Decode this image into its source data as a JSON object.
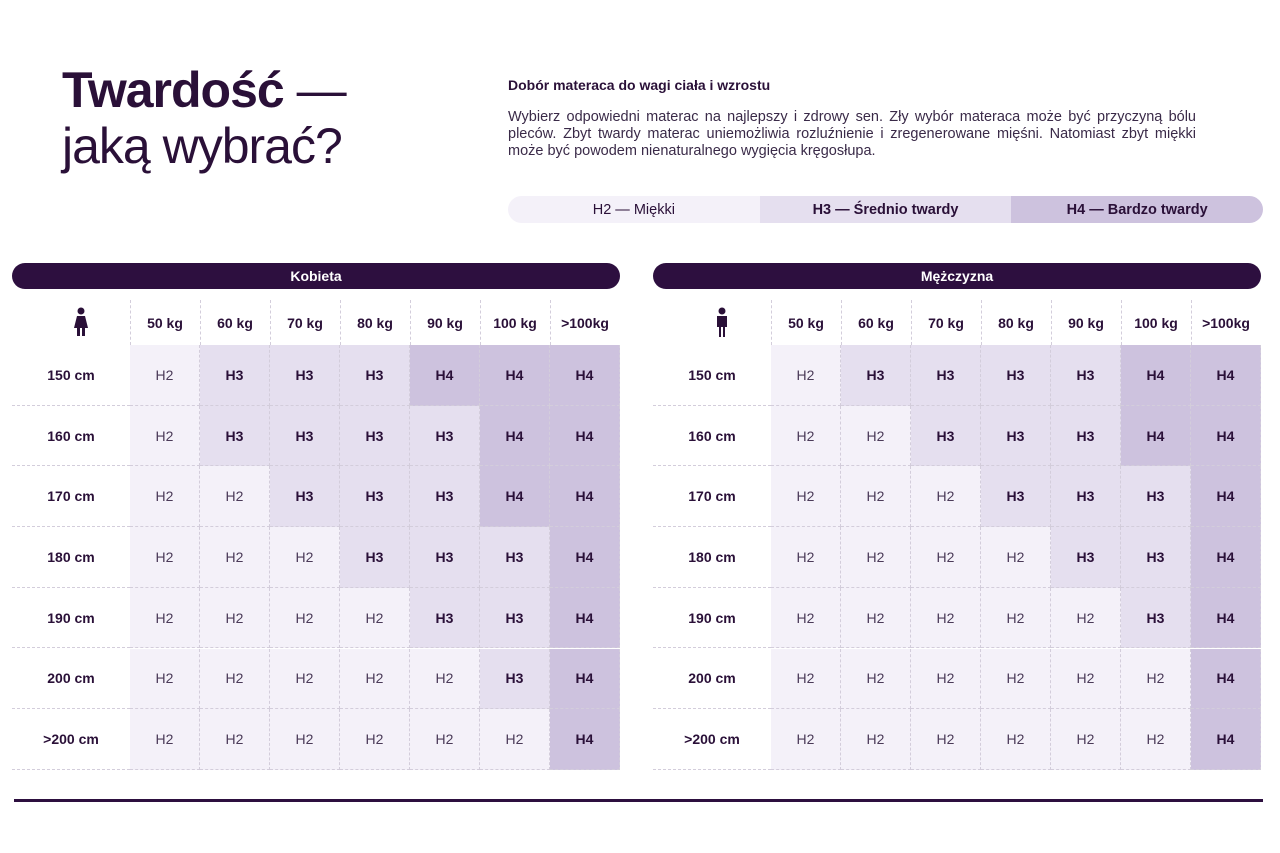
{
  "header": {
    "title_bold": "Twardość",
    "title_dash": "—",
    "title_light": "jaką wybrać?"
  },
  "intro": {
    "heading": "Dobór materaca do wagi ciała i wzrostu",
    "text": "Wybierz odpowiedni materac na najlepszy i zdrowy sen. Zły wybór materaca może być przyczyną bólu pleców. Zbyt twardy materac uniemożliwia rozluźnienie i zregenerowane mięśni. Natomiast zbyt miękki może być powodem nienaturalnego wygięcia kręgosłupa."
  },
  "legend": [
    {
      "code": "H2",
      "label": "H2 — Miękki",
      "color": "#f4f1f9"
    },
    {
      "code": "H3",
      "label": "H3 — Średnio twardy",
      "color": "#e5dfef"
    },
    {
      "code": "H4",
      "label": "H4 — Bardzo twardy",
      "color": "#cdc2de"
    }
  ],
  "tables": [
    {
      "title": "Kobieta",
      "weights": [
        "50 kg",
        "60 kg",
        "70 kg",
        "80 kg",
        "90 kg",
        "100 kg",
        ">100kg"
      ],
      "heights": [
        "150 cm",
        "160 cm",
        "170 cm",
        "180 cm",
        "190 cm",
        "200 cm",
        ">200 cm"
      ],
      "rows": [
        [
          "H2",
          "H3",
          "H3",
          "H3",
          "H4",
          "H4",
          "H4"
        ],
        [
          "H2",
          "H3",
          "H3",
          "H3",
          "H3",
          "H4",
          "H4"
        ],
        [
          "H2",
          "H2",
          "H3",
          "H3",
          "H3",
          "H4",
          "H4"
        ],
        [
          "H2",
          "H2",
          "H2",
          "H3",
          "H3",
          "H3",
          "H4"
        ],
        [
          "H2",
          "H2",
          "H2",
          "H2",
          "H3",
          "H3",
          "H4"
        ],
        [
          "H2",
          "H2",
          "H2",
          "H2",
          "H2",
          "H3",
          "H4"
        ],
        [
          "H2",
          "H2",
          "H2",
          "H2",
          "H2",
          "H2",
          "H4"
        ]
      ]
    },
    {
      "title": "Mężczyzna",
      "weights": [
        "50 kg",
        "60 kg",
        "70 kg",
        "80 kg",
        "90 kg",
        "100 kg",
        ">100kg"
      ],
      "heights": [
        "150 cm",
        "160 cm",
        "170 cm",
        "180 cm",
        "190 cm",
        "200 cm",
        ">200 cm"
      ],
      "rows": [
        [
          "H2",
          "H3",
          "H3",
          "H3",
          "H3",
          "H4",
          "H4"
        ],
        [
          "H2",
          "H2",
          "H3",
          "H3",
          "H3",
          "H4",
          "H4"
        ],
        [
          "H2",
          "H2",
          "H2",
          "H3",
          "H3",
          "H3",
          "H4"
        ],
        [
          "H2",
          "H2",
          "H2",
          "H2",
          "H3",
          "H3",
          "H4"
        ],
        [
          "H2",
          "H2",
          "H2",
          "H2",
          "H2",
          "H3",
          "H4"
        ],
        [
          "H2",
          "H2",
          "H2",
          "H2",
          "H2",
          "H2",
          "H4"
        ],
        [
          "H2",
          "H2",
          "H2",
          "H2",
          "H2",
          "H2",
          "H4"
        ]
      ]
    }
  ]
}
